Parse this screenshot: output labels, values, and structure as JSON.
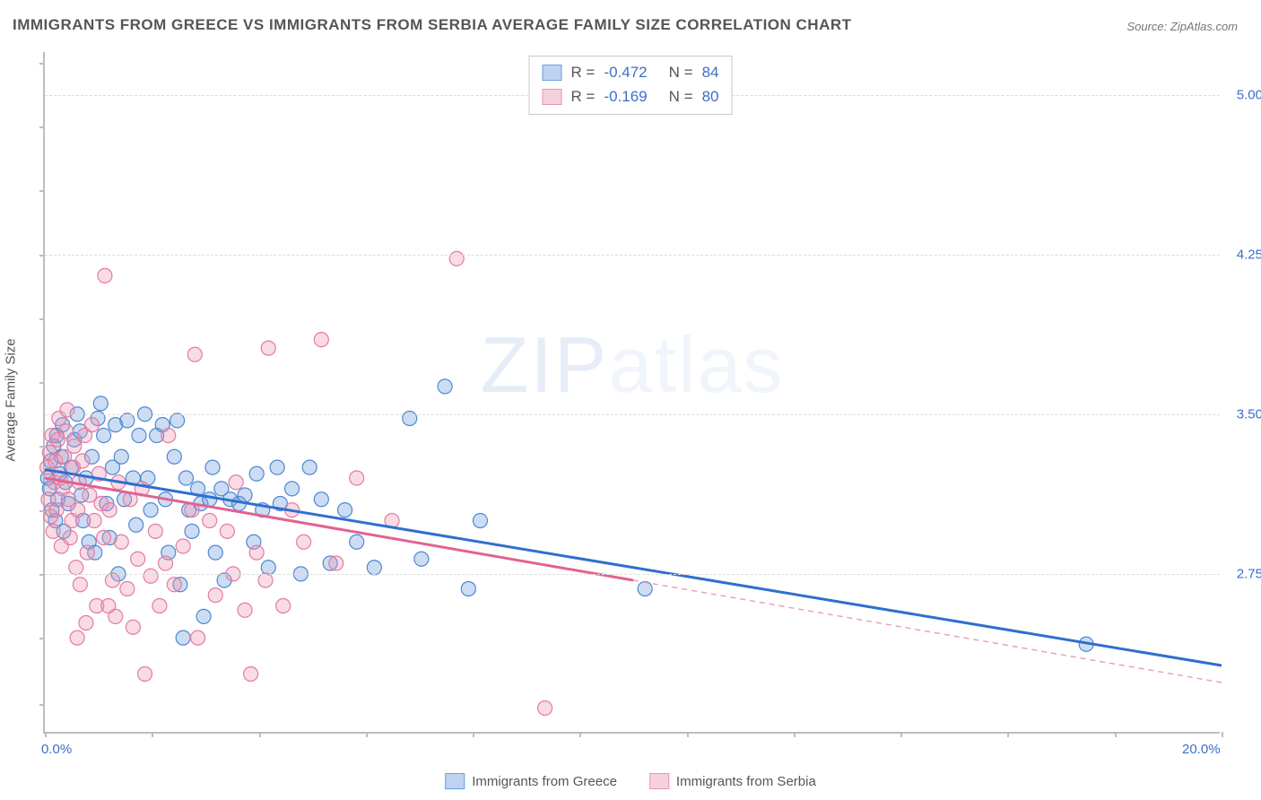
{
  "title": "IMMIGRANTS FROM GREECE VS IMMIGRANTS FROM SERBIA AVERAGE FAMILY SIZE CORRELATION CHART",
  "source_label": "Source: ZipAtlas.com",
  "watermark": "ZIPatlas",
  "ylabel": "Average Family Size",
  "chart": {
    "type": "scatter",
    "background_color": "#ffffff",
    "grid_color": "#dcdcdc",
    "axis_color": "#bdbdbd",
    "tick_label_color": "#3b6fc9",
    "xlim": [
      0,
      20
    ],
    "ylim": [
      2.0,
      5.2
    ],
    "xticks": [
      0,
      20
    ],
    "xtick_labels": [
      "0.0%",
      "20.0%"
    ],
    "yticks": [
      2.75,
      3.5,
      4.25,
      5.0
    ],
    "ytick_labels": [
      "2.75",
      "3.50",
      "4.25",
      "5.00"
    ],
    "x_minor_ticks": [
      0.0,
      1.82,
      3.64,
      5.45,
      7.27,
      9.09,
      10.91,
      12.73,
      14.55,
      16.36,
      18.18,
      20.0
    ],
    "y_minor_ticks": [
      2.14,
      2.45,
      2.75,
      3.05,
      3.35,
      3.65,
      3.95,
      4.25,
      4.55,
      4.85,
      5.15
    ],
    "marker_radius": 8,
    "series": [
      {
        "name": "Immigrants from Greece",
        "color_fill": "#6c9edd",
        "color_stroke": "#4f87d3",
        "trend_color": "#2f6fce",
        "R": "-0.472",
        "N": "84",
        "trend": {
          "x1": 0.0,
          "y1": 3.24,
          "x2": 20.0,
          "y2": 2.32,
          "data_xmax": 20.0
        },
        "points": [
          [
            0.05,
            3.2
          ],
          [
            0.08,
            3.15
          ],
          [
            0.1,
            3.28
          ],
          [
            0.12,
            3.05
          ],
          [
            0.15,
            3.35
          ],
          [
            0.18,
            3.0
          ],
          [
            0.2,
            3.4
          ],
          [
            0.22,
            3.1
          ],
          [
            0.25,
            3.22
          ],
          [
            0.28,
            3.3
          ],
          [
            0.3,
            3.45
          ],
          [
            0.32,
            2.95
          ],
          [
            0.35,
            3.18
          ],
          [
            0.4,
            3.08
          ],
          [
            0.45,
            3.25
          ],
          [
            0.5,
            3.38
          ],
          [
            0.55,
            3.5
          ],
          [
            0.6,
            3.42
          ],
          [
            0.62,
            3.12
          ],
          [
            0.65,
            3.0
          ],
          [
            0.7,
            3.2
          ],
          [
            0.75,
            2.9
          ],
          [
            0.8,
            3.3
          ],
          [
            0.85,
            2.85
          ],
          [
            0.9,
            3.48
          ],
          [
            0.95,
            3.55
          ],
          [
            1.0,
            3.4
          ],
          [
            1.05,
            3.08
          ],
          [
            1.1,
            2.92
          ],
          [
            1.15,
            3.25
          ],
          [
            1.2,
            3.45
          ],
          [
            1.25,
            2.75
          ],
          [
            1.3,
            3.3
          ],
          [
            1.35,
            3.1
          ],
          [
            1.4,
            3.47
          ],
          [
            1.5,
            3.2
          ],
          [
            1.55,
            2.98
          ],
          [
            1.6,
            3.4
          ],
          [
            1.7,
            3.5
          ],
          [
            1.75,
            3.2
          ],
          [
            1.8,
            3.05
          ],
          [
            1.9,
            3.4
          ],
          [
            2.0,
            3.45
          ],
          [
            2.05,
            3.1
          ],
          [
            2.1,
            2.85
          ],
          [
            2.2,
            3.3
          ],
          [
            2.25,
            3.47
          ],
          [
            2.3,
            2.7
          ],
          [
            2.4,
            3.2
          ],
          [
            2.45,
            3.05
          ],
          [
            2.5,
            2.95
          ],
          [
            2.6,
            3.15
          ],
          [
            2.65,
            3.08
          ],
          [
            2.7,
            2.55
          ],
          [
            2.8,
            3.1
          ],
          [
            2.85,
            3.25
          ],
          [
            2.9,
            2.85
          ],
          [
            3.0,
            3.15
          ],
          [
            3.05,
            2.72
          ],
          [
            3.15,
            3.1
          ],
          [
            3.3,
            3.08
          ],
          [
            3.4,
            3.12
          ],
          [
            3.55,
            2.9
          ],
          [
            3.6,
            3.22
          ],
          [
            3.7,
            3.05
          ],
          [
            3.8,
            2.78
          ],
          [
            3.95,
            3.25
          ],
          [
            4.0,
            3.08
          ],
          [
            4.2,
            3.15
          ],
          [
            4.35,
            2.75
          ],
          [
            4.5,
            3.25
          ],
          [
            4.7,
            3.1
          ],
          [
            4.85,
            2.8
          ],
          [
            5.1,
            3.05
          ],
          [
            5.3,
            2.9
          ],
          [
            5.6,
            2.78
          ],
          [
            6.2,
            3.48
          ],
          [
            6.4,
            2.82
          ],
          [
            6.8,
            3.63
          ],
          [
            7.2,
            2.68
          ],
          [
            7.4,
            3.0
          ],
          [
            10.2,
            2.68
          ],
          [
            17.7,
            2.42
          ],
          [
            2.35,
            2.45
          ]
        ]
      },
      {
        "name": "Immigrants from Serbia",
        "color_fill": "#ec98b4",
        "color_stroke": "#e47ba1",
        "trend_color": "#e36193",
        "R": "-0.169",
        "N": "80",
        "trend": {
          "x1": 0.0,
          "y1": 3.2,
          "x2": 20.0,
          "y2": 2.24,
          "data_xmax": 10.0
        },
        "points": [
          [
            0.04,
            3.25
          ],
          [
            0.06,
            3.1
          ],
          [
            0.08,
            3.32
          ],
          [
            0.1,
            3.02
          ],
          [
            0.12,
            3.4
          ],
          [
            0.14,
            2.95
          ],
          [
            0.16,
            3.18
          ],
          [
            0.18,
            3.28
          ],
          [
            0.2,
            3.05
          ],
          [
            0.22,
            3.38
          ],
          [
            0.24,
            3.48
          ],
          [
            0.26,
            3.2
          ],
          [
            0.28,
            2.88
          ],
          [
            0.3,
            3.15
          ],
          [
            0.33,
            3.3
          ],
          [
            0.36,
            3.42
          ],
          [
            0.38,
            3.52
          ],
          [
            0.4,
            3.1
          ],
          [
            0.43,
            2.92
          ],
          [
            0.46,
            3.0
          ],
          [
            0.48,
            3.25
          ],
          [
            0.5,
            3.35
          ],
          [
            0.53,
            2.78
          ],
          [
            0.56,
            3.05
          ],
          [
            0.58,
            3.18
          ],
          [
            0.6,
            2.7
          ],
          [
            0.64,
            3.28
          ],
          [
            0.68,
            3.4
          ],
          [
            0.72,
            2.85
          ],
          [
            0.76,
            3.12
          ],
          [
            0.8,
            3.45
          ],
          [
            0.84,
            3.0
          ],
          [
            0.88,
            2.6
          ],
          [
            0.92,
            3.22
          ],
          [
            0.96,
            3.08
          ],
          [
            1.0,
            2.92
          ],
          [
            1.02,
            4.15
          ],
          [
            1.1,
            3.05
          ],
          [
            1.15,
            2.72
          ],
          [
            1.2,
            2.55
          ],
          [
            1.25,
            3.18
          ],
          [
            1.3,
            2.9
          ],
          [
            1.4,
            2.68
          ],
          [
            1.45,
            3.1
          ],
          [
            1.5,
            2.5
          ],
          [
            1.58,
            2.82
          ],
          [
            1.65,
            3.15
          ],
          [
            1.7,
            2.28
          ],
          [
            1.8,
            2.74
          ],
          [
            1.88,
            2.95
          ],
          [
            1.95,
            2.6
          ],
          [
            2.05,
            2.8
          ],
          [
            2.1,
            3.4
          ],
          [
            2.2,
            2.7
          ],
          [
            2.35,
            2.88
          ],
          [
            2.5,
            3.05
          ],
          [
            2.55,
            3.78
          ],
          [
            2.6,
            2.45
          ],
          [
            2.8,
            3.0
          ],
          [
            2.9,
            2.65
          ],
          [
            3.1,
            2.95
          ],
          [
            3.2,
            2.75
          ],
          [
            3.25,
            3.18
          ],
          [
            3.4,
            2.58
          ],
          [
            3.5,
            2.28
          ],
          [
            3.6,
            2.85
          ],
          [
            3.75,
            2.72
          ],
          [
            3.8,
            3.81
          ],
          [
            4.05,
            2.6
          ],
          [
            4.2,
            3.05
          ],
          [
            4.4,
            2.9
          ],
          [
            4.7,
            3.85
          ],
          [
            4.95,
            2.8
          ],
          [
            5.3,
            3.2
          ],
          [
            5.9,
            3.0
          ],
          [
            7.0,
            4.23
          ],
          [
            8.5,
            2.12
          ],
          [
            0.55,
            2.45
          ],
          [
            1.08,
            2.6
          ],
          [
            0.7,
            2.52
          ]
        ]
      }
    ]
  },
  "legend_bottom": [
    {
      "swatch": "blue",
      "label": "Immigrants from Greece"
    },
    {
      "swatch": "pink",
      "label": "Immigrants from Serbia"
    }
  ]
}
